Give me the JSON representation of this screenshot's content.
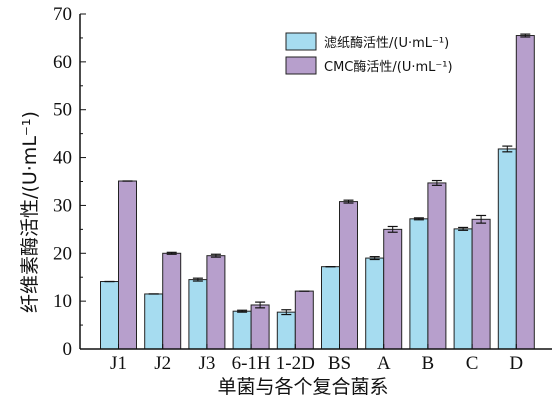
{
  "chart_data": {
    "type": "bar",
    "xlabel": "单菌与各个复合菌系",
    "ylabel": "纤维素酶活性/(U·mL⁻¹)",
    "ylim": [
      0,
      70
    ],
    "yticks": [
      0,
      10,
      20,
      30,
      40,
      50,
      60,
      70
    ],
    "categories": [
      "J1",
      "J2",
      "J3",
      "6-1H",
      "1-2D",
      "BS",
      "A",
      "B",
      "C",
      "D"
    ],
    "series": [
      {
        "name": "滤纸酶活性/(U·mL⁻¹)",
        "color": "#a6dcf0",
        "values": [
          14.1,
          11.5,
          14.5,
          7.9,
          7.7,
          17.2,
          19.0,
          27.2,
          25.1,
          41.8
        ],
        "errors": [
          0.0,
          0.0,
          0.3,
          0.2,
          0.5,
          0.0,
          0.3,
          0.2,
          0.3,
          0.6
        ]
      },
      {
        "name": "CMC酶活性/(U·mL⁻¹)",
        "color": "#b79fcc",
        "values": [
          35.1,
          20.0,
          19.5,
          9.2,
          12.1,
          30.8,
          25.0,
          34.7,
          27.1,
          65.5
        ],
        "errors": [
          0.0,
          0.2,
          0.3,
          0.6,
          0.0,
          0.3,
          0.6,
          0.5,
          0.8,
          0.3
        ]
      }
    ],
    "legend": {
      "position": "top-right"
    },
    "grid": false
  }
}
